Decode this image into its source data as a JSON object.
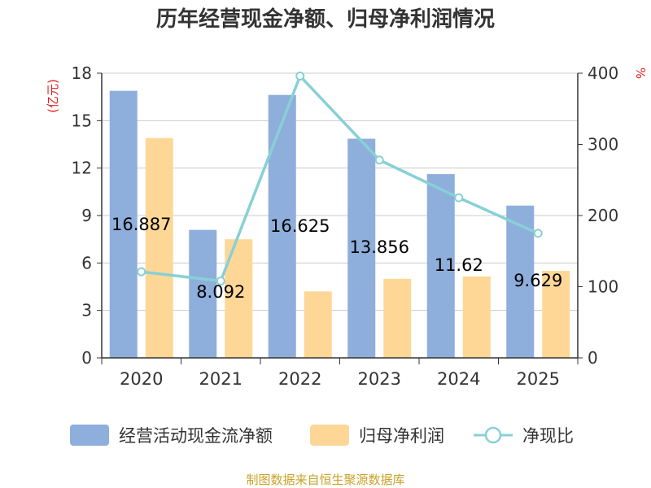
{
  "chart_data": {
    "type": "bar",
    "title": "历年经营现金净额、归母净利润情况",
    "categories": [
      "2020",
      "2021",
      "2022",
      "2023",
      "2024",
      "2025"
    ],
    "series": [
      {
        "name": "经营活动现金流净额",
        "kind": "bar",
        "axis": "left",
        "color": "#8eaedb",
        "values": [
          16.887,
          8.092,
          16.625,
          13.856,
          11.62,
          9.629
        ],
        "labels": [
          "16.887",
          "8.092",
          "16.625",
          "13.856",
          "11.62",
          "9.629"
        ]
      },
      {
        "name": "归母净利润",
        "kind": "bar",
        "axis": "left",
        "color": "#fed797",
        "values": [
          13.9,
          7.5,
          4.2,
          5.0,
          5.15,
          5.5
        ]
      },
      {
        "name": "净现比",
        "kind": "line",
        "axis": "right",
        "color": "#88d0d6",
        "values": [
          121,
          108,
          396,
          278,
          225,
          175
        ]
      }
    ],
    "y_left": {
      "label": "(亿元)",
      "ylim": [
        0,
        18
      ],
      "ticks": [
        "0",
        "3",
        "6",
        "9",
        "12",
        "15",
        "18"
      ]
    },
    "y_right": {
      "label": "%",
      "ylim": [
        0,
        400
      ],
      "ticks": [
        "0",
        "100",
        "200",
        "300",
        "400"
      ]
    },
    "grid": true,
    "legend_position": "bottom"
  },
  "colors": {
    "unit_label": "#e02020",
    "source": "#c9a227",
    "axis": "#333333",
    "grid": "#cccccc"
  },
  "footer": {
    "source": "制图数据来自恒生聚源数据库"
  }
}
